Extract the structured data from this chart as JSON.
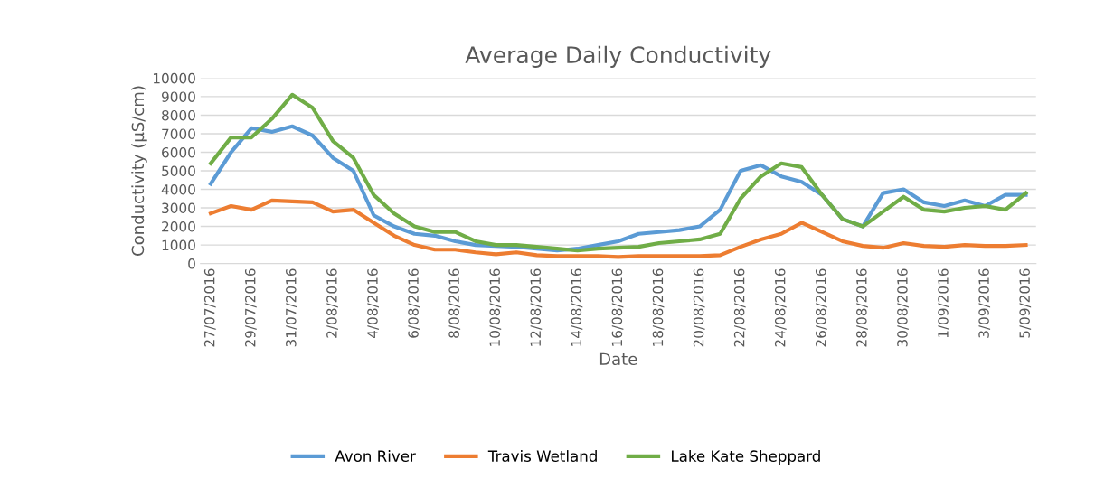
{
  "chart_data": {
    "type": "line",
    "title": "Average Daily Conductivity",
    "xlabel": "Date",
    "ylabel": "Conductivity (µS/cm)",
    "categories": [
      "27/07/2016",
      null,
      "29/07/2016",
      null,
      "31/07/2016",
      null,
      "2/08/2016",
      null,
      "4/08/2016",
      null,
      "6/08/2016",
      null,
      "8/08/2016",
      null,
      "10/08/2016",
      null,
      "12/08/2016",
      null,
      "14/08/2016",
      null,
      "16/08/2016",
      null,
      "18/08/2016",
      null,
      "20/08/2016",
      null,
      "22/08/2016",
      null,
      "24/08/2016",
      null,
      "26/08/2016",
      null,
      "28/08/2016",
      null,
      "30/08/2016",
      null,
      "1/09/2016",
      null,
      "3/09/2016",
      null,
      "5/09/2016"
    ],
    "series": [
      {
        "name": "Avon River",
        "color": "#5b9bd5",
        "values": [
          4300,
          6000,
          7300,
          7100,
          7400,
          6900,
          5700,
          5000,
          2600,
          2000,
          1600,
          1500,
          1200,
          1000,
          950,
          900,
          800,
          700,
          800,
          1000,
          1200,
          1600,
          1700,
          1800,
          2000,
          2900,
          5000,
          5300,
          4700,
          4400,
          3700,
          2400,
          2000,
          3800,
          4000,
          3300,
          3100,
          3400,
          3100,
          3700,
          3700
        ]
      },
      {
        "name": "Travis Wetland",
        "color": "#ed7d31",
        "values": [
          2700,
          3100,
          2900,
          3400,
          3350,
          3300,
          2800,
          2900,
          2200,
          1500,
          1000,
          750,
          750,
          600,
          500,
          600,
          450,
          400,
          400,
          400,
          350,
          400,
          400,
          400,
          400,
          450,
          900,
          1300,
          1600,
          2200,
          1700,
          1200,
          950,
          850,
          1100,
          950,
          900,
          1000,
          950,
          950,
          1000
        ]
      },
      {
        "name": "Lake Kate Sheppard",
        "color": "#70ad47",
        "values": [
          5400,
          6800,
          6800,
          7800,
          9100,
          8400,
          6600,
          5700,
          3700,
          2700,
          2000,
          1700,
          1700,
          1200,
          1000,
          1000,
          900,
          800,
          700,
          800,
          850,
          900,
          1100,
          1200,
          1300,
          1600,
          3500,
          4700,
          5400,
          5200,
          3700,
          2400,
          2000,
          2800,
          3600,
          2900,
          2800,
          3000,
          3100,
          2900,
          3800
        ]
      }
    ],
    "ylim": [
      0,
      10000
    ],
    "yticks": [
      0,
      1000,
      2000,
      3000,
      4000,
      5000,
      6000,
      7000,
      8000,
      9000,
      10000
    ],
    "grid": "y",
    "legend": "bottom",
    "marker": "none",
    "line_style": "solid"
  }
}
